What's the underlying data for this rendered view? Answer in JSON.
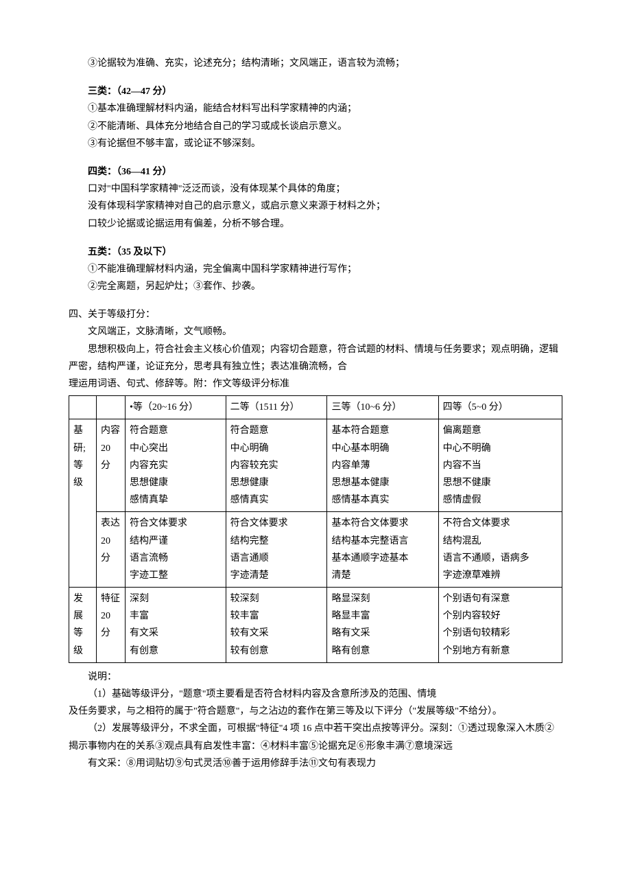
{
  "block1": {
    "line1": "③论据较为准确、充实，论述充分；结构清晰；文风端正，语言较为流畅；"
  },
  "block2": {
    "title": "三类：（42—47 分）",
    "line1": "①基本准确理解材料内涵，能结合材料写出科学家精神的内涵；",
    "line2": "②不能清晰、具体充分地结合自己的学习或成长谈启示意义。",
    "line3": "③有论据但不够丰富，或论证不够深刻。"
  },
  "block3": {
    "title": "四类：（36—41 分）",
    "line1": "口对\"中国科学家精神\"泛泛而谈，没有体现某个具体的角度；",
    "line2": "  没有体现科学家精神对自己的启示意义，或启示意义来源于材料之外；",
    "line3": "口较少论据或论据运用有偏差，分析不够合理。"
  },
  "block4": {
    "title": "五类：（35 及以下）",
    "line1": "①不能准确理解材料内涵，完全偏离中国科学家精神进行写作；",
    "line2": "②完全离题，另起炉灶；③套作、抄袭。"
  },
  "section4": {
    "title": "四、关于等级打分：",
    "line1": "文风端正，文脉清晰，文气顺畅。",
    "line2": "思想积极向上，符合社会主义核心价值观；内容切合题意，符合试题的材料、情境与任务要求；观点明确，逻辑严密，结构严谨，论证充分，思考具有独立性；表达准确流畅，合",
    "line3": "理运用词语、句式、修辞等。附：作文等级评分标准"
  },
  "table": {
    "header": {
      "c1": "",
      "c2": "",
      "c3": "•等（20~16 分）",
      "c4": "二等（1511 分）",
      "c5": "三等（10~6 分）",
      "c6": "四等（5~0 分）"
    },
    "rows": [
      {
        "cat": "基研; 等级",
        "sub": "内容 20 分",
        "c3": "符合题意\n中心突出\n内容充实\n思想健康\n感情真挚",
        "c4": "符合题意\n中心明确\n内容较充实\n思想健康\n感情真实",
        "c5": "基本符合题意\n中心基本明确\n内容单薄\n思想基本健康\n感情基本真实",
        "c6": "偏离题意\n中心不明确\n内容不当\n思想不健康\n感情虚假"
      },
      {
        "cat": "",
        "sub": "表达 20 分",
        "c3": "符合文体要求\n结构严谨\n语言流畅\n字迹工整",
        "c4": "符合文体要求\n结构完整\n语言通顺\n字迹清楚",
        "c5": "基本符合文体要求\n结构基本完整语言\n基本通顺字迹基本\n清楚",
        "c6": "不符合文体要求\n结构混乱\n语言不通顺，语病多\n字迹潦草难辨"
      },
      {
        "cat": "发展 等级",
        "sub": "特征 20 分",
        "c3": "深刻\n丰富\n有文采\n有创意",
        "c4": "较深刻\n较丰富\n较有文采\n较有创意",
        "c5": "略显深刻\n略显丰富\n略有文采\n略有创意",
        "c6": "个别语句有深意\n个别内容较好\n个别语句较精彩\n个别地方有新意"
      }
    ]
  },
  "notes": {
    "title": "说明：",
    "p1": "（1）基础等级评分，\"题意\"项主要看是否符合材料内容及含意所涉及的范围、情境",
    "p1b": "及任务要求，与之相符的属于\"符合题意\"，与之沾边的套作在第三等及以下评分（\"发展等级\"不给分）。",
    "p2": "（2）发展等级评分，不求全面，可根据\"特征\"4 项 16 点中若干突出点按等评分。深刻：①透过现象深入木质②揭示事物内在的关系③观点具有启发性丰富：④材料丰富⑤论据充足⑥形象丰满⑦意境深远",
    "p3": "有文采：⑧用词贴切⑨句式灵活⑩善于运用修辞手法⑪文句有表现力"
  }
}
